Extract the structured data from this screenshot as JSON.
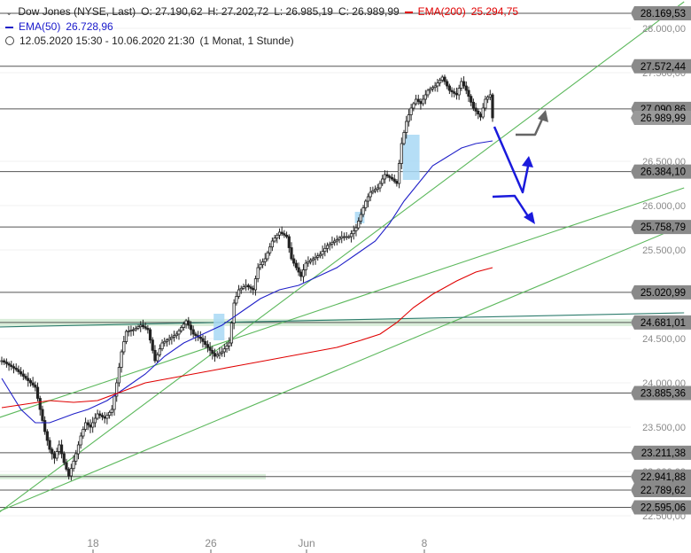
{
  "header": {
    "symbol": "Dow Jones (NYSE, Last)",
    "open": "O: 27.190,62",
    "high": "H: 27.202,72",
    "low": "L: 26.985,19",
    "close": "C: 26.989,99",
    "ema200_label": "EMA(200)",
    "ema200_value": "25.294,75",
    "ema50_label": "EMA(50)",
    "ema50_value": "26.728,96",
    "range": "12.05.2020 15:30 - 10.06.2020 21:30",
    "interval": "(1 Monat, 1 Stunde)"
  },
  "colors": {
    "ema200": "#e00000",
    "ema50": "#2020c8",
    "trend": "#5cb85c",
    "long_trend": "#2e7d6e",
    "arrow": "#1a1adc",
    "gray_arrow": "#666666",
    "box": "#a8d8f4",
    "zone": "#cfe8cf",
    "level_line": "#555555",
    "badge": "#8a8a8a"
  },
  "chart_data": {
    "type": "candlestick",
    "y_axis_ticks": [
      "28.000,00",
      "27.500,00",
      "26.500,00",
      "26.000,00",
      "25.500,00",
      "24.500,00",
      "24.000,00",
      "23.500,00",
      "23.000,00",
      "22.500,00"
    ],
    "y_tick_values": [
      28000,
      27500,
      26500,
      26000,
      25500,
      24500,
      24000,
      23500,
      23000,
      22500
    ],
    "x_axis_ticks": [
      "18",
      "26",
      "Jun",
      "8"
    ],
    "ylim": [
      22430,
      28250
    ],
    "horizontal_levels": [
      {
        "value": 28169.53,
        "label": "28.169,53"
      },
      {
        "value": 27572.44,
        "label": "27.572,44"
      },
      {
        "value": 27090.86,
        "label": "27.090,86"
      },
      {
        "value": 26384.1,
        "label": "26.384,10"
      },
      {
        "value": 25758.79,
        "label": "25.758,79"
      },
      {
        "value": 25020.99,
        "label": "25.020,99"
      },
      {
        "value": 24681.01,
        "label": "24.681,01"
      },
      {
        "value": 23885.36,
        "label": "23.885,36"
      },
      {
        "value": 23211.38,
        "label": "23.211,38"
      },
      {
        "value": 22941.88,
        "label": "22.941,88"
      },
      {
        "value": 22789.62,
        "label": "22.789,62"
      },
      {
        "value": 22595.06,
        "label": "22.595,06"
      }
    ],
    "last_price": {
      "value": 26989.99,
      "label": "26.989,99"
    },
    "close_path": [
      [
        0,
        24250
      ],
      [
        6,
        24150
      ],
      [
        10,
        24050
      ],
      [
        14,
        23950
      ],
      [
        16,
        23700
      ],
      [
        18,
        23450
      ],
      [
        20,
        23250
      ],
      [
        22,
        23150
      ],
      [
        24,
        23300
      ],
      [
        26,
        23100
      ],
      [
        28,
        22950
      ],
      [
        31,
        23200
      ],
      [
        33,
        23400
      ],
      [
        35,
        23550
      ],
      [
        37,
        23500
      ],
      [
        40,
        23650
      ],
      [
        43,
        23600
      ],
      [
        46,
        23700
      ],
      [
        48,
        24000
      ],
      [
        50,
        24350
      ],
      [
        52,
        24580
      ],
      [
        55,
        24600
      ],
      [
        58,
        24650
      ],
      [
        61,
        24600
      ],
      [
        64,
        24250
      ],
      [
        67,
        24450
      ],
      [
        70,
        24500
      ],
      [
        73,
        24550
      ],
      [
        77,
        24700
      ],
      [
        80,
        24550
      ],
      [
        83,
        24500
      ],
      [
        86,
        24400
      ],
      [
        89,
        24300
      ],
      [
        92,
        24350
      ],
      [
        95,
        24450
      ],
      [
        97,
        24900
      ],
      [
        99,
        25050
      ],
      [
        102,
        25100
      ],
      [
        105,
        25050
      ],
      [
        107,
        25300
      ],
      [
        110,
        25400
      ],
      [
        113,
        25600
      ],
      [
        116,
        25700
      ],
      [
        119,
        25650
      ],
      [
        121,
        25400
      ],
      [
        123,
        25300
      ],
      [
        125,
        25200
      ],
      [
        127,
        25350
      ],
      [
        130,
        25400
      ],
      [
        133,
        25450
      ],
      [
        136,
        25550
      ],
      [
        139,
        25600
      ],
      [
        142,
        25650
      ],
      [
        145,
        25650
      ],
      [
        148,
        25750
      ],
      [
        150,
        25900
      ],
      [
        152,
        26050
      ],
      [
        154,
        26150
      ],
      [
        157,
        26200
      ],
      [
        160,
        26350
      ],
      [
        163,
        26300
      ],
      [
        165,
        26250
      ],
      [
        167,
        26700
      ],
      [
        169,
        26950
      ],
      [
        171,
        27100
      ],
      [
        173,
        27200
      ],
      [
        175,
        27150
      ],
      [
        178,
        27300
      ],
      [
        181,
        27350
      ],
      [
        184,
        27450
      ],
      [
        187,
        27300
      ],
      [
        190,
        27250
      ],
      [
        192,
        27400
      ],
      [
        194,
        27300
      ],
      [
        197,
        27100
      ],
      [
        200,
        27000
      ],
      [
        202,
        27200
      ],
      [
        204,
        27250
      ],
      [
        205,
        26990
      ]
    ],
    "ema50_path": [
      [
        0,
        24050
      ],
      [
        8,
        23700
      ],
      [
        14,
        23550
      ],
      [
        20,
        23550
      ],
      [
        25,
        23600
      ],
      [
        30,
        23650
      ],
      [
        36,
        23700
      ],
      [
        44,
        23800
      ],
      [
        52,
        23950
      ],
      [
        60,
        24100
      ],
      [
        68,
        24300
      ],
      [
        76,
        24450
      ],
      [
        84,
        24550
      ],
      [
        92,
        24650
      ],
      [
        100,
        24800
      ],
      [
        108,
        24950
      ],
      [
        116,
        25050
      ],
      [
        124,
        25100
      ],
      [
        132,
        25200
      ],
      [
        140,
        25300
      ],
      [
        148,
        25450
      ],
      [
        156,
        25600
      ],
      [
        162,
        25800
      ],
      [
        168,
        26050
      ],
      [
        174,
        26250
      ],
      [
        180,
        26450
      ],
      [
        186,
        26550
      ],
      [
        192,
        26650
      ],
      [
        198,
        26700
      ],
      [
        205,
        26730
      ]
    ],
    "ema200_path": [
      [
        0,
        23720
      ],
      [
        10,
        23760
      ],
      [
        20,
        23800
      ],
      [
        30,
        23780
      ],
      [
        40,
        23800
      ],
      [
        50,
        23900
      ],
      [
        60,
        24000
      ],
      [
        70,
        24050
      ],
      [
        80,
        24100
      ],
      [
        90,
        24150
      ],
      [
        100,
        24200
      ],
      [
        110,
        24250
      ],
      [
        120,
        24300
      ],
      [
        130,
        24350
      ],
      [
        140,
        24400
      ],
      [
        150,
        24480
      ],
      [
        158,
        24550
      ],
      [
        165,
        24680
      ],
      [
        172,
        24850
      ],
      [
        180,
        25000
      ],
      [
        190,
        25150
      ],
      [
        198,
        25250
      ],
      [
        205,
        25300
      ]
    ]
  }
}
